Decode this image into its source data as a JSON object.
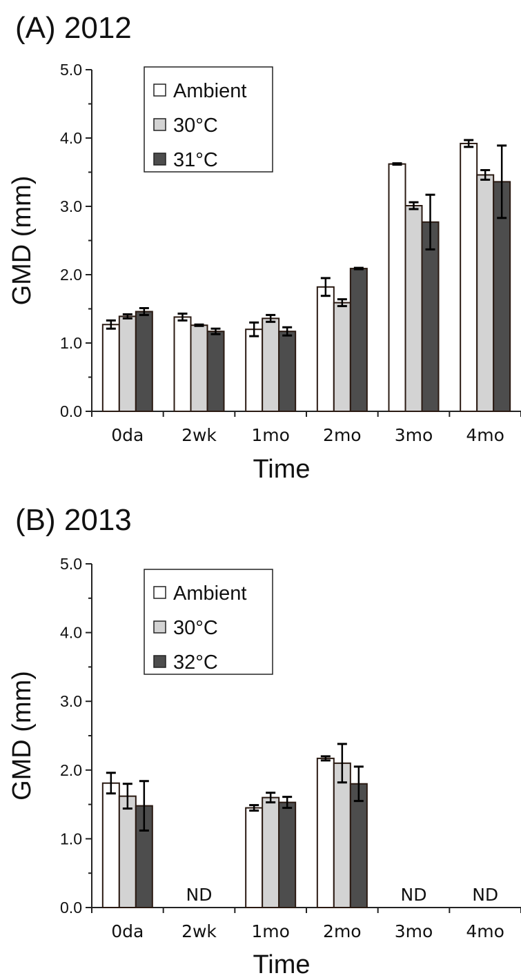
{
  "colors": {
    "Ambient": "#ffffff",
    "30°C": "#d3d3d3",
    "31°C": "#4d4d4d",
    "32°C": "#4d4d4d",
    "bar_edge": "#2a1a12",
    "axis": "#222222"
  },
  "chart_data": [
    {
      "type": "bar",
      "title": "(A) 2012",
      "xlabel": "Time",
      "ylabel": "GMD (mm)",
      "ylim": [
        0,
        5
      ],
      "yticks": [
        "0.0",
        "1.0",
        "2.0",
        "3.0",
        "4.0",
        "5.0"
      ],
      "categories": [
        "0da",
        "2wk",
        "1mo",
        "2mo",
        "3mo",
        "4mo"
      ],
      "legend_position": "top-left",
      "grid": false,
      "series": [
        {
          "name": "Ambient",
          "values": [
            1.27,
            1.38,
            1.2,
            1.82,
            3.62,
            3.92
          ],
          "errors": [
            0.06,
            0.05,
            0.1,
            0.13,
            0.01,
            0.05
          ]
        },
        {
          "name": "30°C",
          "values": [
            1.39,
            1.26,
            1.36,
            1.59,
            3.01,
            3.46
          ],
          "errors": [
            0.03,
            0.01,
            0.05,
            0.05,
            0.05,
            0.07
          ]
        },
        {
          "name": "31°C",
          "values": [
            1.46,
            1.17,
            1.17,
            2.09,
            2.77,
            3.36
          ],
          "errors": [
            0.05,
            0.04,
            0.06,
            0.01,
            0.4,
            0.53
          ]
        }
      ],
      "annotations": []
    },
    {
      "type": "bar",
      "title": "(B) 2013",
      "xlabel": "Time",
      "ylabel": "GMD (mm)",
      "ylim": [
        0,
        5
      ],
      "yticks": [
        "0.0",
        "1.0",
        "2.0",
        "3.0",
        "4.0",
        "5.0"
      ],
      "categories": [
        "0da",
        "2wk",
        "1mo",
        "2mo",
        "3mo",
        "4mo"
      ],
      "legend_position": "top-left",
      "grid": false,
      "series": [
        {
          "name": "Ambient",
          "values": [
            1.81,
            null,
            1.45,
            2.17,
            null,
            null
          ],
          "errors": [
            0.15,
            null,
            0.04,
            0.03,
            null,
            null
          ]
        },
        {
          "name": "30°C",
          "values": [
            1.62,
            null,
            1.6,
            2.1,
            null,
            null
          ],
          "errors": [
            0.18,
            null,
            0.07,
            0.28,
            null,
            null
          ]
        },
        {
          "name": "32°C",
          "values": [
            1.48,
            null,
            1.53,
            1.8,
            null,
            null
          ],
          "errors": [
            0.36,
            null,
            0.08,
            0.25,
            null,
            null
          ]
        }
      ],
      "annotations": [
        {
          "category": "2wk",
          "text": "ND"
        },
        {
          "category": "3mo",
          "text": "ND"
        },
        {
          "category": "4mo",
          "text": "ND"
        }
      ]
    }
  ]
}
